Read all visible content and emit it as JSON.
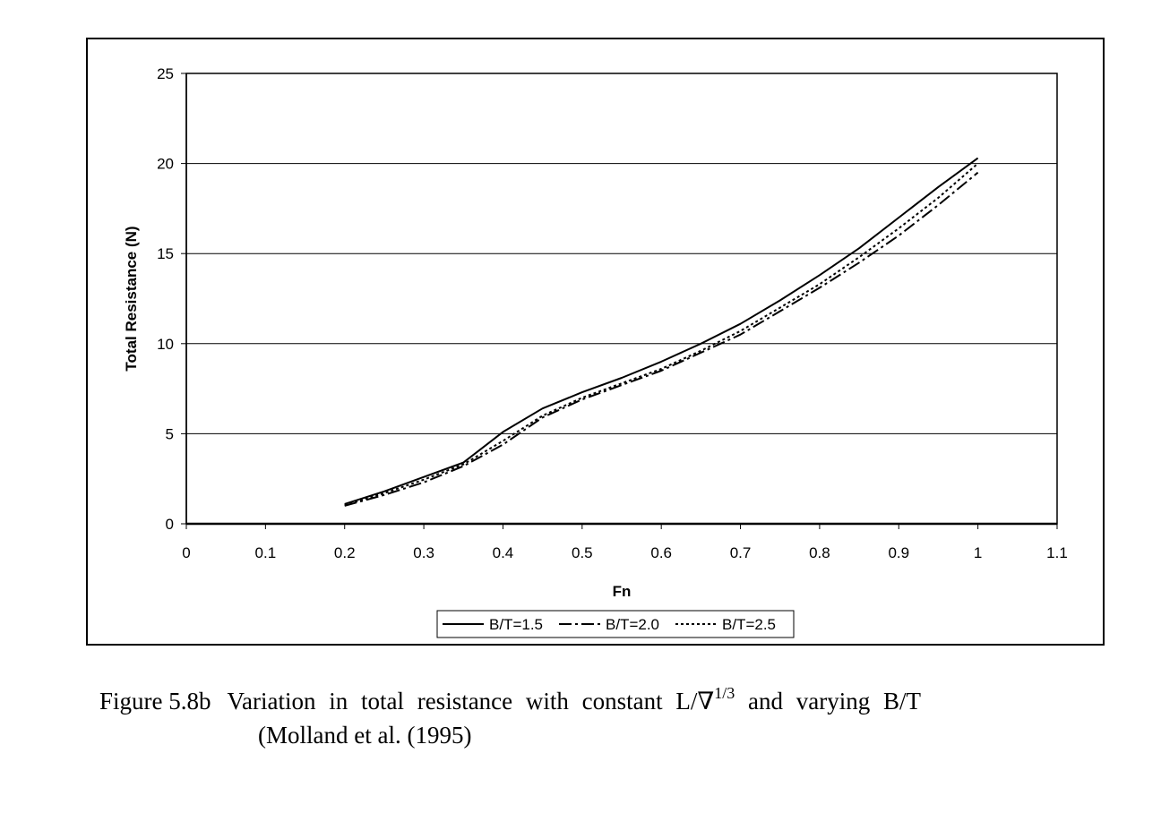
{
  "chart_data": {
    "type": "line",
    "xlabel": "Fn",
    "ylabel": "Total Resistance (N)",
    "xlim": [
      0,
      1.1
    ],
    "ylim": [
      0,
      25
    ],
    "xticks": [
      "0",
      "0.1",
      "0.2",
      "0.3",
      "0.4",
      "0.5",
      "0.6",
      "0.7",
      "0.8",
      "0.9",
      "1",
      "1.1"
    ],
    "yticks": [
      "0",
      "5",
      "10",
      "15",
      "20",
      "25"
    ],
    "grid": "horizontal",
    "legend_position": "bottom",
    "series": [
      {
        "name": "B/T=1.5",
        "style": "solid",
        "points": [
          [
            0.2,
            1.1
          ],
          [
            0.25,
            1.8
          ],
          [
            0.3,
            2.6
          ],
          [
            0.35,
            3.4
          ],
          [
            0.4,
            5.1
          ],
          [
            0.45,
            6.4
          ],
          [
            0.5,
            7.3
          ],
          [
            0.55,
            8.1
          ],
          [
            0.6,
            9.0
          ],
          [
            0.65,
            10.0
          ],
          [
            0.7,
            11.1
          ],
          [
            0.75,
            12.4
          ],
          [
            0.8,
            13.8
          ],
          [
            0.85,
            15.3
          ],
          [
            0.9,
            17.0
          ],
          [
            0.95,
            18.7
          ],
          [
            1.0,
            20.3
          ]
        ]
      },
      {
        "name": "B/T=2.0",
        "style": "dash-dot",
        "points": [
          [
            0.2,
            1.0
          ],
          [
            0.25,
            1.6
          ],
          [
            0.3,
            2.3
          ],
          [
            0.35,
            3.2
          ],
          [
            0.4,
            4.4
          ],
          [
            0.45,
            5.9
          ],
          [
            0.5,
            6.9
          ],
          [
            0.55,
            7.7
          ],
          [
            0.6,
            8.5
          ],
          [
            0.65,
            9.5
          ],
          [
            0.7,
            10.5
          ],
          [
            0.75,
            11.8
          ],
          [
            0.8,
            13.1
          ],
          [
            0.85,
            14.5
          ],
          [
            0.9,
            16.0
          ],
          [
            0.95,
            17.7
          ],
          [
            1.0,
            19.5
          ]
        ]
      },
      {
        "name": "B/T=2.5",
        "style": "dotted",
        "points": [
          [
            0.2,
            1.05
          ],
          [
            0.25,
            1.7
          ],
          [
            0.3,
            2.45
          ],
          [
            0.35,
            3.3
          ],
          [
            0.4,
            4.6
          ],
          [
            0.45,
            6.0
          ],
          [
            0.5,
            7.0
          ],
          [
            0.55,
            7.8
          ],
          [
            0.6,
            8.6
          ],
          [
            0.65,
            9.6
          ],
          [
            0.7,
            10.7
          ],
          [
            0.75,
            12.0
          ],
          [
            0.8,
            13.3
          ],
          [
            0.85,
            14.8
          ],
          [
            0.9,
            16.4
          ],
          [
            0.95,
            18.1
          ],
          [
            1.0,
            20.0
          ]
        ]
      }
    ]
  },
  "caption": {
    "figure_label": "Figure 5.8b",
    "text_before_sup": "Variation in total resistance with constant L/∇",
    "superscript": "1/3",
    "text_after_sup": " and varying B/T",
    "line2": "(Molland et al. (1995)"
  }
}
